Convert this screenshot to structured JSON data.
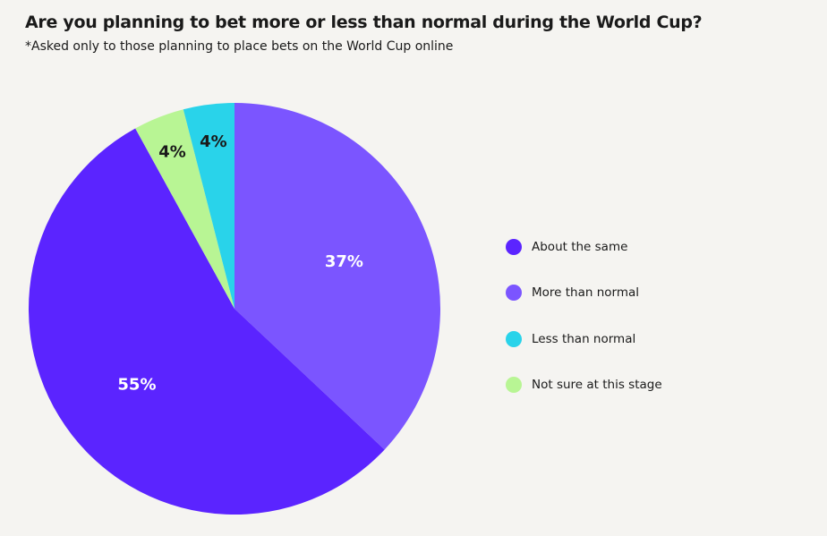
{
  "chart_data": {
    "type": "pie",
    "title": "Are you planning to bet more or less than normal during the World Cup?",
    "subtitle": "*Asked only to those planning to place bets on the World Cup online",
    "slices": [
      {
        "label": "More than normal",
        "value": 37,
        "data_label": "37%",
        "color": "#7b55ff",
        "label_color": "#ffffff"
      },
      {
        "label": "About the same",
        "value": 55,
        "data_label": "55%",
        "color": "#5b24ff",
        "label_color": "#ffffff"
      },
      {
        "label": "Not sure at this stage",
        "value": 4,
        "data_label": "4%",
        "color": "#b8f594",
        "label_color": "#1a1a1a"
      },
      {
        "label": "Less than normal",
        "value": 4,
        "data_label": "4%",
        "color": "#29d3ea",
        "label_color": "#1a1a1a"
      }
    ],
    "legend": {
      "placement": "right",
      "entries": [
        {
          "label": "About the same",
          "color": "#5b24ff"
        },
        {
          "label": "More than normal",
          "color": "#7b55ff"
        },
        {
          "label": "Less than normal",
          "color": "#29d3ea"
        },
        {
          "label": "Not sure at this stage",
          "color": "#b8f594"
        }
      ]
    }
  }
}
